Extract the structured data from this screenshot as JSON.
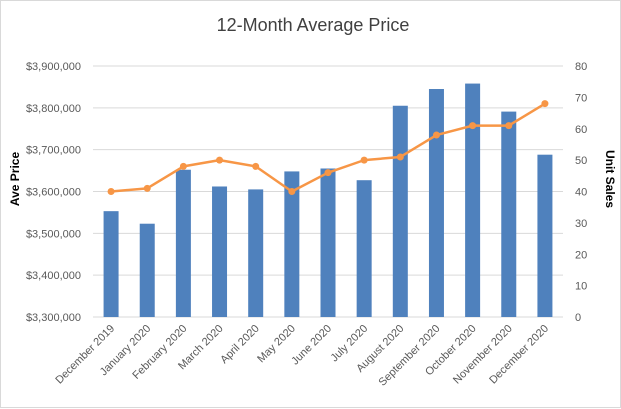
{
  "chart_data": {
    "type": "bar",
    "title": "12-Month Average Price",
    "categories": [
      "December 2019",
      "January 2020",
      "February 2020",
      "March 2020",
      "April 2020",
      "May 2020",
      "June 2020",
      "July 2020",
      "August 2020",
      "September 2020",
      "October 2020",
      "November 2020",
      "December 2020"
    ],
    "series": [
      {
        "type": "bar",
        "axis": "left",
        "color": "#4f81bd",
        "values": [
          3553000,
          3523000,
          3652000,
          3612000,
          3605000,
          3648000,
          3655000,
          3627000,
          3805000,
          3845000,
          3858000,
          3791000,
          3688000
        ]
      },
      {
        "type": "line",
        "axis": "right",
        "color": "#f79646",
        "values": [
          40,
          41,
          48,
          50,
          48,
          40,
          46,
          50,
          51,
          58,
          61,
          61,
          68
        ]
      }
    ],
    "ylabel": "Ave Price",
    "y2label": "Unit Sales",
    "ylim": [
      3300000,
      3900000
    ],
    "y2lim": [
      0,
      80
    ],
    "y_ticks": [
      "$3,300,000",
      "$3,400,000",
      "$3,500,000",
      "$3,600,000",
      "$3,700,000",
      "$3,800,000",
      "$3,900,000"
    ],
    "y2_ticks": [
      "0",
      "10",
      "20",
      "30",
      "40",
      "50",
      "60",
      "70",
      "80"
    ],
    "grid": true,
    "legend": "none"
  }
}
